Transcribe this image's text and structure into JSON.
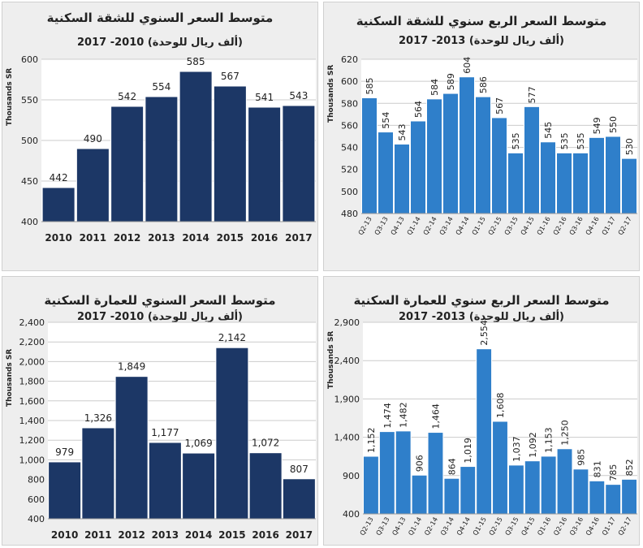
{
  "colors": {
    "dark": "#1c3766",
    "light": "#2f7fca",
    "panel_bg": "#eeeeee",
    "grid": "#cccccc"
  },
  "chart_data": [
    {
      "type": "bar",
      "title": "متوسط السعر السنوي للشقة السكنية",
      "subtitle": "(ألف ريال للوحدة)  2010- 2017",
      "ylabel": "Thousands SR",
      "categories": [
        "2010",
        "2011",
        "2012",
        "2013",
        "2014",
        "2015",
        "2016",
        "2017"
      ],
      "values": [
        442,
        490,
        542,
        554,
        585,
        567,
        541,
        543
      ],
      "labels": [
        "442",
        "490",
        "542",
        "554",
        "585",
        "567",
        "541",
        "543"
      ],
      "ylim": [
        400,
        600
      ],
      "yticks": [
        400,
        450,
        500,
        550,
        600
      ],
      "ytick_labels": [
        "400",
        "450",
        "500",
        "550",
        "600"
      ],
      "color": "#1c3766"
    },
    {
      "type": "bar",
      "title": "متوسط السعر الربع سنوي للشقة السكنية",
      "subtitle": "(ألف ريال للوحدة) 2013- 2017",
      "ylabel": "Thousands SR",
      "categories": [
        "Q2-13",
        "Q3-13",
        "Q4-13",
        "Q1-14",
        "Q2-14",
        "Q3-14",
        "Q4-14",
        "Q1-15",
        "Q2-15",
        "Q3-15",
        "Q4-15",
        "Q1-16",
        "Q2-16",
        "Q3-16",
        "Q4-16",
        "Q1-17",
        "Q2-17"
      ],
      "values": [
        585,
        554,
        543,
        564,
        584,
        589,
        604,
        586,
        567,
        535,
        577,
        545,
        535,
        535,
        549,
        550,
        530
      ],
      "labels": [
        "585",
        "554",
        "543",
        "564",
        "584",
        "589",
        "604",
        "586",
        "567",
        "535",
        "577",
        "545",
        "535",
        "535",
        "549",
        "550",
        "530"
      ],
      "ylim": [
        480,
        620
      ],
      "yticks": [
        480,
        500,
        520,
        540,
        560,
        580,
        600,
        620
      ],
      "ytick_labels": [
        "480",
        "500",
        "520",
        "540",
        "560",
        "580",
        "600",
        "620"
      ],
      "color": "#2f7fca"
    },
    {
      "type": "bar",
      "title": "متوسط السعر السنوي للعمارة السكنية",
      "subtitle": "(ألف ريال للوحدة)  2010- 2017",
      "ylabel": "Thousands SR",
      "categories": [
        "2010",
        "2011",
        "2012",
        "2013",
        "2014",
        "2015",
        "2016",
        "2017"
      ],
      "values": [
        979,
        1326,
        1849,
        1177,
        1069,
        2142,
        1072,
        807
      ],
      "labels": [
        "979",
        "1,326",
        "1,849",
        "1,177",
        "1,069",
        "2,142",
        "1,072",
        "807"
      ],
      "ylim": [
        400,
        2400
      ],
      "yticks": [
        400,
        600,
        800,
        1000,
        1200,
        1400,
        1600,
        1800,
        2000,
        2200,
        2400
      ],
      "ytick_labels": [
        "400",
        "600",
        "800",
        "1,000",
        "1,200",
        "1,400",
        "1,600",
        "1,800",
        "2,000",
        "2,200",
        "2,400"
      ],
      "color": "#1c3766"
    },
    {
      "type": "bar",
      "title": "متوسط السعر الربع سنوي للعمارة السكنية",
      "subtitle": "(ألف ريال للوحدة) 2013- 2017",
      "ylabel": "Thousands SR",
      "categories": [
        "Q2-13",
        "Q3-13",
        "Q4-13",
        "Q1-14",
        "Q2-14",
        "Q3-14",
        "Q4-14",
        "Q1-15",
        "Q2-15",
        "Q3-15",
        "Q4-15",
        "Q1-16",
        "Q2-16",
        "Q3-16",
        "Q4-16",
        "Q1-17",
        "Q2-17"
      ],
      "values": [
        1152,
        1474,
        1482,
        906,
        1464,
        864,
        1019,
        2554,
        1608,
        1037,
        1092,
        1153,
        1250,
        985,
        831,
        785,
        852
      ],
      "labels": [
        "1,152",
        "1,474",
        "1,482",
        "906",
        "1,464",
        "864",
        "1,019",
        "2,554",
        "1,608",
        "1,037",
        "1,092",
        "1,153",
        "1,250",
        "985",
        "831",
        "785",
        "852"
      ],
      "ylim": [
        400,
        2900
      ],
      "yticks": [
        400,
        900,
        1400,
        1900,
        2400,
        2900
      ],
      "ytick_labels": [
        "400",
        "900",
        "1,400",
        "1,900",
        "2,400",
        "2,900"
      ],
      "color": "#2f7fca"
    }
  ]
}
